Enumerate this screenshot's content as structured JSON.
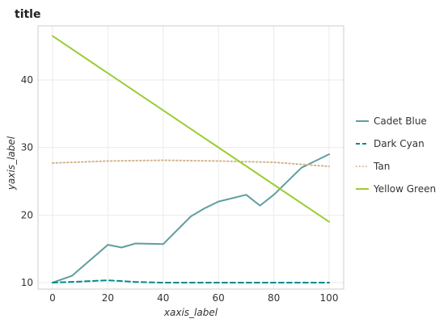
{
  "chart_data": {
    "type": "line",
    "title": "title",
    "xlabel": "xaxis_label",
    "ylabel": "yaxis_label",
    "xlim": [
      0,
      100
    ],
    "ylim": [
      10,
      48
    ],
    "x_ticks": [
      0,
      20,
      40,
      60,
      80,
      100
    ],
    "y_ticks": [
      10,
      20,
      30,
      40
    ],
    "grid": true,
    "legend_position": "right",
    "series": [
      {
        "name": "Cadet Blue",
        "color": "#5f9ea0",
        "style": "solid",
        "x": [
          0,
          7,
          20,
          25,
          30,
          40,
          50,
          55,
          60,
          70,
          75,
          80,
          90,
          100
        ],
        "y": [
          10.0,
          11.0,
          15.6,
          15.2,
          15.8,
          15.7,
          19.8,
          21.0,
          22.0,
          23.0,
          21.4,
          23.0,
          27.0,
          29.0
        ]
      },
      {
        "name": "Dark Cyan",
        "color": "#008b8b",
        "style": "dashed",
        "x": [
          0,
          10,
          20,
          30,
          40,
          50,
          60,
          70,
          80,
          90,
          100
        ],
        "y": [
          10.0,
          10.15,
          10.35,
          10.1,
          10.0,
          10.0,
          10.0,
          10.0,
          10.0,
          10.0,
          10.0
        ]
      },
      {
        "name": "Tan",
        "color": "#d2b48c",
        "style": "dotted",
        "x": [
          0,
          20,
          40,
          60,
          80,
          100
        ],
        "y": [
          27.7,
          28.0,
          28.1,
          28.0,
          27.8,
          27.2
        ]
      },
      {
        "name": "Yellow Green",
        "color": "#9acd32",
        "style": "solid",
        "x": [
          0,
          100
        ],
        "y": [
          46.5,
          19.0
        ]
      }
    ]
  }
}
